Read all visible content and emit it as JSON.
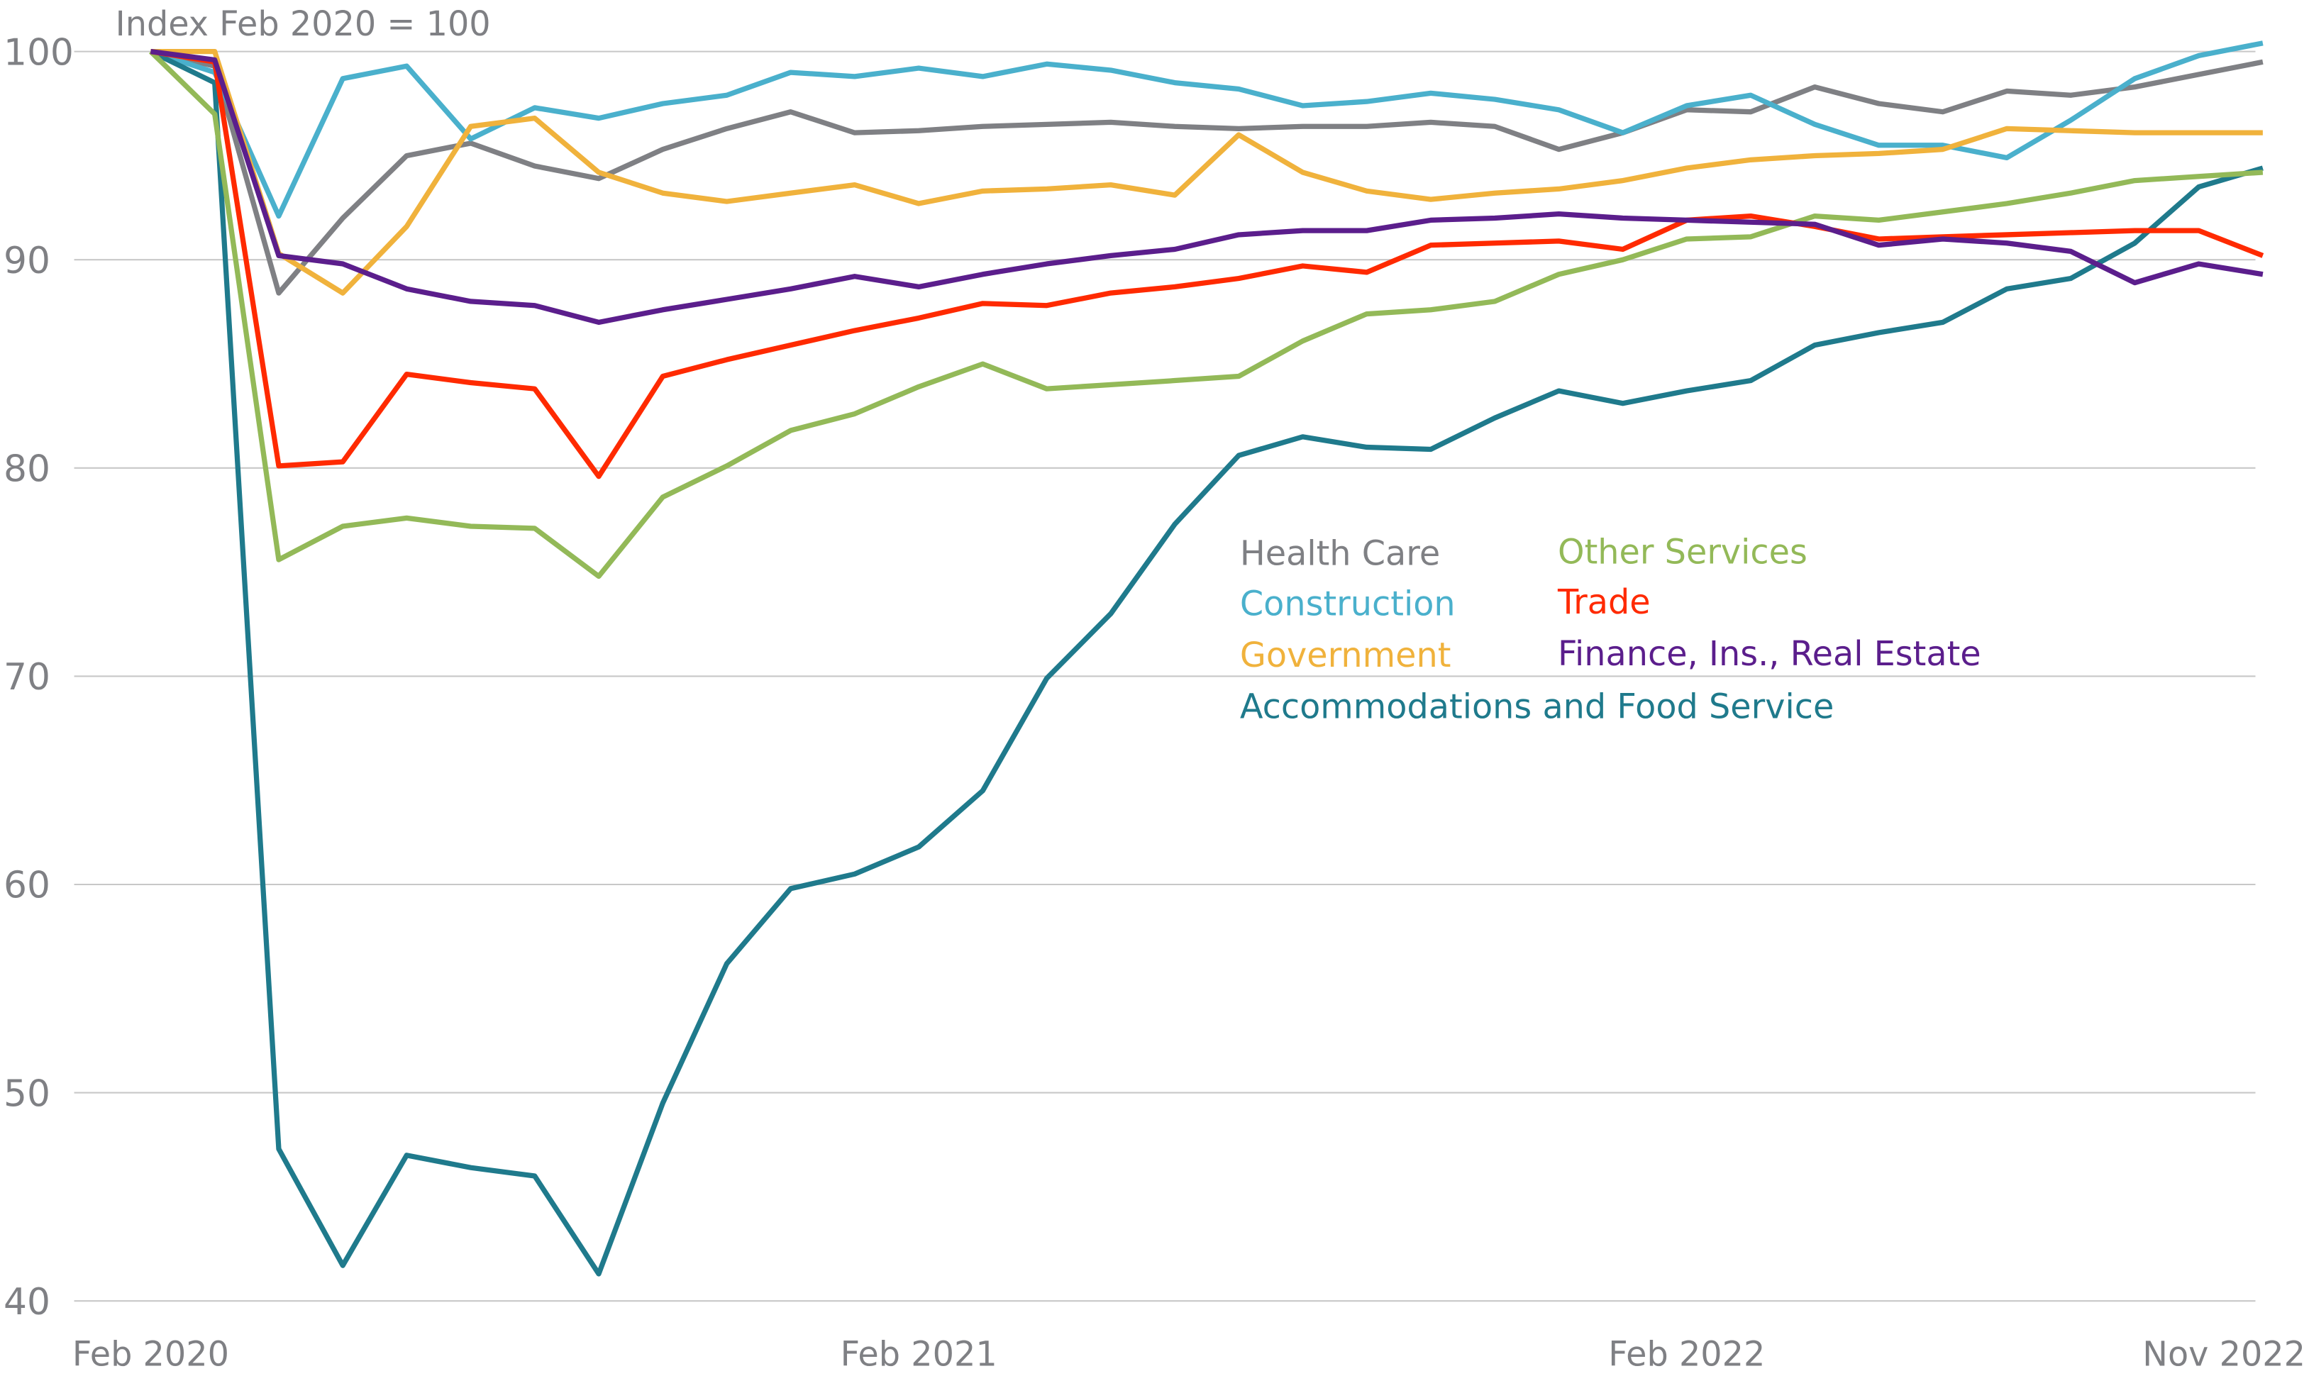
{
  "chart_data": {
    "type": "line",
    "subtitle": "Index Feb 2020 = 100",
    "categories": [
      "Feb 2020",
      null,
      null,
      null,
      null,
      null,
      null,
      null,
      null,
      null,
      null,
      null,
      "Feb 2021",
      null,
      null,
      null,
      null,
      null,
      null,
      null,
      null,
      null,
      null,
      null,
      "Feb 2022",
      null,
      null,
      null,
      null,
      null,
      null,
      null,
      null,
      "Nov 2022"
    ],
    "ylim": [
      40,
      100
    ],
    "yticks": [
      40,
      50,
      60,
      70,
      80,
      90,
      100
    ],
    "grid": true,
    "series": [
      {
        "name": "Health Care",
        "color": "#7f8084",
        "values": [
          100,
          99.3,
          88.4,
          92.0,
          95.0,
          95.6,
          94.5,
          93.9,
          95.3,
          96.3,
          97.1,
          96.1,
          96.2,
          96.4,
          96.5,
          96.6,
          96.4,
          96.3,
          96.4,
          96.4,
          96.6,
          96.4,
          95.3,
          96.1,
          97.2,
          97.1,
          98.3,
          97.5,
          97.1,
          98.1,
          97.9,
          98.3,
          98.9,
          99.5
        ]
      },
      {
        "name": "Construction",
        "color": "#4ab0cc",
        "values": [
          100,
          99.0,
          92.1,
          98.7,
          99.3,
          95.8,
          97.3,
          96.8,
          97.5,
          97.9,
          99.0,
          98.8,
          99.2,
          98.8,
          99.4,
          99.1,
          98.5,
          98.2,
          97.4,
          97.6,
          98.0,
          97.7,
          97.2,
          96.1,
          97.4,
          97.9,
          96.5,
          95.5,
          95.5,
          94.9,
          96.7,
          98.7,
          99.8,
          100.4
        ]
      },
      {
        "name": "Government",
        "color": "#f0b23c",
        "values": [
          100,
          100.0,
          90.3,
          88.4,
          91.6,
          96.4,
          96.8,
          94.2,
          93.2,
          92.8,
          93.2,
          93.6,
          92.7,
          93.3,
          93.4,
          93.6,
          93.1,
          96.0,
          94.2,
          93.3,
          92.9,
          93.2,
          93.4,
          93.8,
          94.4,
          94.8,
          95.0,
          95.1,
          95.3,
          96.3,
          96.2,
          96.1,
          96.1,
          96.1
        ]
      },
      {
        "name": "Accommodations and Food Service",
        "color": "#1f7a8c",
        "values": [
          100,
          98.5,
          47.3,
          41.7,
          47.0,
          46.4,
          46.0,
          41.3,
          49.5,
          56.2,
          59.8,
          60.5,
          61.8,
          64.5,
          69.9,
          73.0,
          77.3,
          80.6,
          81.5,
          81.0,
          80.9,
          82.4,
          83.7,
          83.1,
          83.7,
          84.2,
          85.9,
          86.5,
          87.0,
          88.6,
          89.1,
          90.8,
          93.5,
          94.4
        ]
      },
      {
        "name": "Other Services",
        "color": "#93b958",
        "values": [
          100,
          97.0,
          75.6,
          77.2,
          77.6,
          77.2,
          77.1,
          74.8,
          78.6,
          80.1,
          81.8,
          82.6,
          83.9,
          85.0,
          83.8,
          84.0,
          84.2,
          84.4,
          86.1,
          87.4,
          87.6,
          88.0,
          89.3,
          90.0,
          91.0,
          91.1,
          92.1,
          91.9,
          92.3,
          92.7,
          93.2,
          93.8,
          94.0,
          94.2
        ]
      },
      {
        "name": "Trade",
        "color": "#ff2a00",
        "values": [
          100,
          99.5,
          80.1,
          80.3,
          84.5,
          84.1,
          83.8,
          79.6,
          84.4,
          85.2,
          85.9,
          86.6,
          87.2,
          87.9,
          87.8,
          88.4,
          88.7,
          89.1,
          89.7,
          89.4,
          90.7,
          90.8,
          90.9,
          90.5,
          91.9,
          92.1,
          91.6,
          91.0,
          91.1,
          91.2,
          91.3,
          91.4,
          91.4,
          90.2
        ]
      },
      {
        "name": "Finance, Ins., Real Estate",
        "color": "#5b1e8c",
        "values": [
          100,
          99.6,
          90.2,
          89.8,
          88.6,
          88.0,
          87.8,
          87.0,
          87.6,
          88.1,
          88.6,
          89.2,
          88.7,
          89.3,
          89.8,
          90.2,
          90.5,
          91.2,
          91.4,
          91.4,
          91.9,
          92.0,
          92.2,
          92.0,
          91.9,
          91.8,
          91.7,
          90.7,
          91.0,
          90.8,
          90.4,
          88.9,
          89.8,
          89.3
        ]
      }
    ]
  }
}
